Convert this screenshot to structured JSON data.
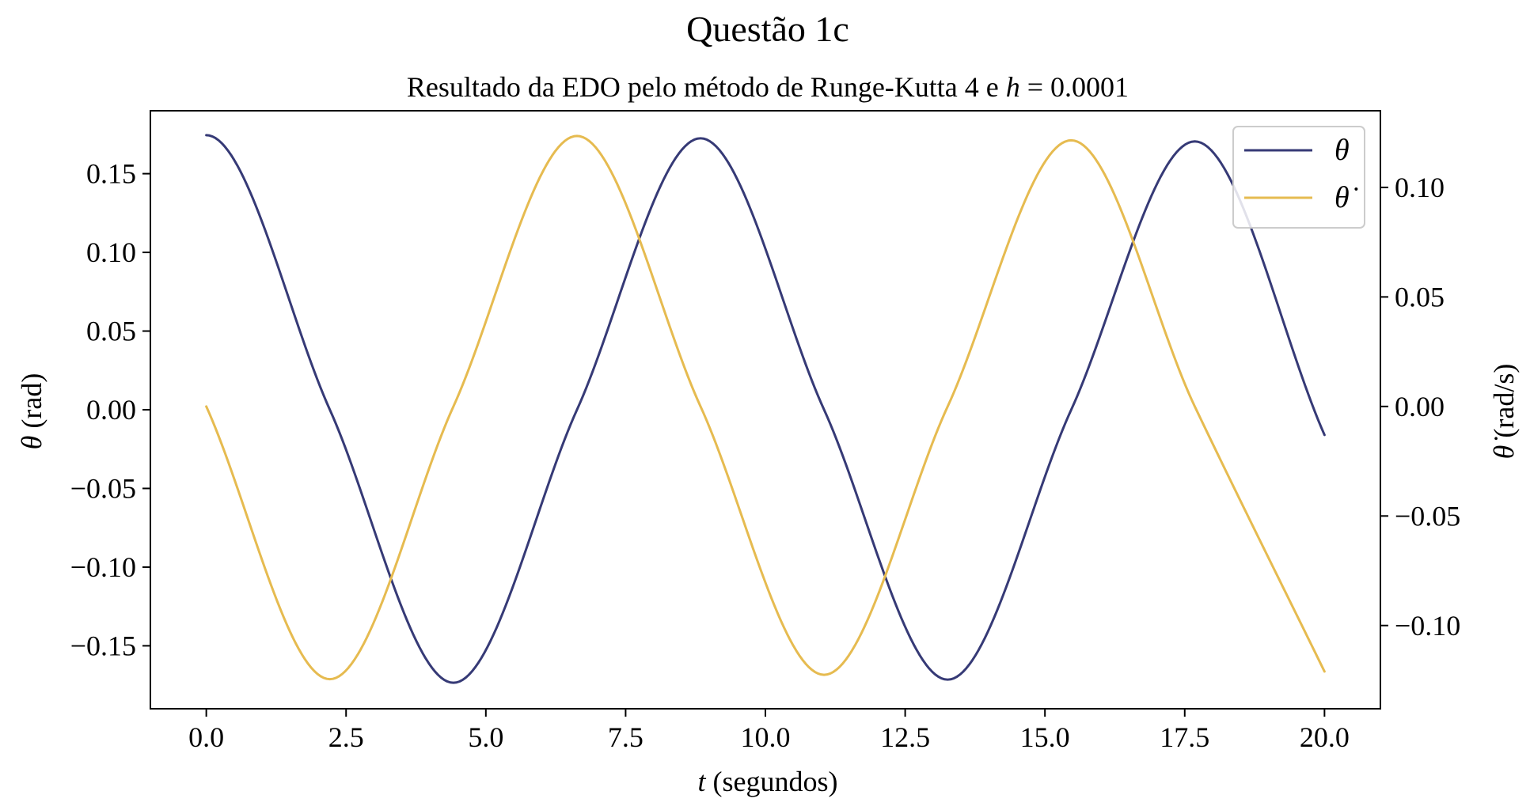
{
  "figure": {
    "suptitle": "Questão 1c",
    "title_prefix": "Resultado da EDO pelo método de Runge-Kutta 4 e ",
    "title_var": "h",
    "title_eq": " = 0.0001"
  },
  "chart_data": {
    "type": "line",
    "title": "Resultado da EDO pelo método de Runge-Kutta 4 e h = 0.0001",
    "xlabel": {
      "var": "t",
      "text": " (segundos)"
    },
    "ylabel_left": {
      "var": "θ",
      "text": " (rad)"
    },
    "ylabel_right": {
      "var": "θ̇",
      "text": " (rad/s)"
    },
    "xlim": [
      -1.0,
      21.0
    ],
    "ylim_left": [
      -0.19,
      0.19
    ],
    "ylim_right": [
      -0.138,
      0.135
    ],
    "xticks": [
      0.0,
      2.5,
      5.0,
      7.5,
      10.0,
      12.5,
      15.0,
      17.5,
      20.0
    ],
    "xtick_labels": [
      "0.0",
      "2.5",
      "5.0",
      "7.5",
      "10.0",
      "12.5",
      "15.0",
      "17.5",
      "20.0"
    ],
    "yticks_left": [
      0.15,
      0.1,
      0.05,
      0.0,
      -0.05,
      -0.1,
      -0.15
    ],
    "ytick_labels_left": [
      "0.15",
      "0.10",
      "0.05",
      "0.00",
      "−0.05",
      "−0.10",
      "−0.15"
    ],
    "yticks_right": [
      0.1,
      0.05,
      0.0,
      -0.05,
      -0.1
    ],
    "ytick_labels_right": [
      "0.10",
      "0.05",
      "0.00",
      "−0.05",
      "−0.10"
    ],
    "legend_position": "upper right",
    "grid": false,
    "series": [
      {
        "name": "θ",
        "axis": "left",
        "color": "#363a76",
        "x": [
          0.0,
          2.21,
          4.42,
          6.63,
          8.84,
          11.05,
          13.26,
          15.47,
          17.68,
          20.0
        ],
        "values": [
          0.1745,
          0.0,
          -0.1735,
          0.0,
          0.1725,
          0.0,
          -0.1715,
          0.0,
          0.1705,
          -0.016
        ]
      },
      {
        "name": "θ̇",
        "axis": "right",
        "color": "#e6bb50",
        "x": [
          0.0,
          2.21,
          4.42,
          6.63,
          8.84,
          11.05,
          13.26,
          15.47,
          17.68,
          20.0
        ],
        "values": [
          0.0,
          -0.1245,
          0.0,
          0.1235,
          0.0,
          -0.1225,
          0.0,
          0.1215,
          0.0,
          -0.121
        ]
      }
    ]
  }
}
